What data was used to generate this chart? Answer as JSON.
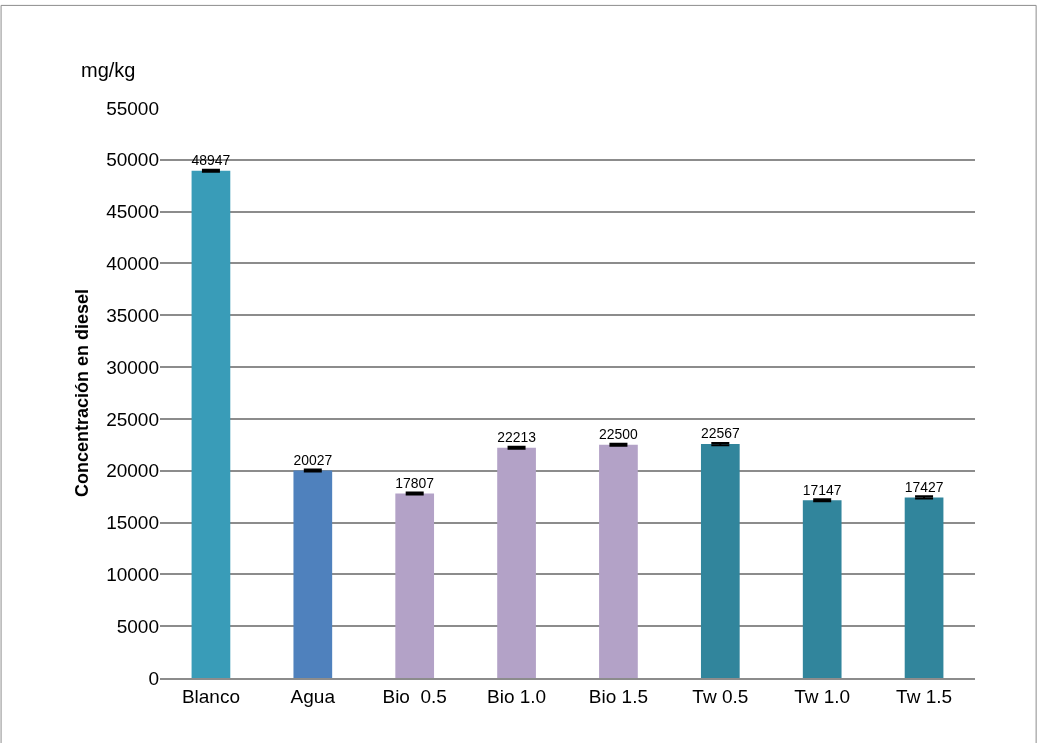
{
  "chart_data": {
    "type": "bar",
    "categories": [
      "Blanco",
      "Agua",
      "Bio  0.5",
      "Bio 1.0",
      "Bio 1.5",
      "Tw 0.5",
      "Tw 1.0",
      "Tw 1.5"
    ],
    "values": [
      48947,
      20027,
      17807,
      22213,
      22500,
      22567,
      17147,
      17427
    ],
    "colors": [
      "#399cb8",
      "#4f81bd",
      "#b3a2c7",
      "#b3a2c7",
      "#b3a2c7",
      "#31859c",
      "#31859c",
      "#31859c"
    ],
    "errors": [
      100,
      100,
      100,
      100,
      100,
      100,
      100,
      100
    ],
    "ylabel": "Concentración en diesel",
    "annotations": [
      "mg/kg"
    ],
    "ylim": [
      0,
      55000
    ],
    "yticks": [
      0,
      5000,
      10000,
      15000,
      20000,
      25000,
      30000,
      35000,
      40000,
      45000,
      50000,
      55000
    ],
    "grid": "y",
    "data_labels": true
  }
}
